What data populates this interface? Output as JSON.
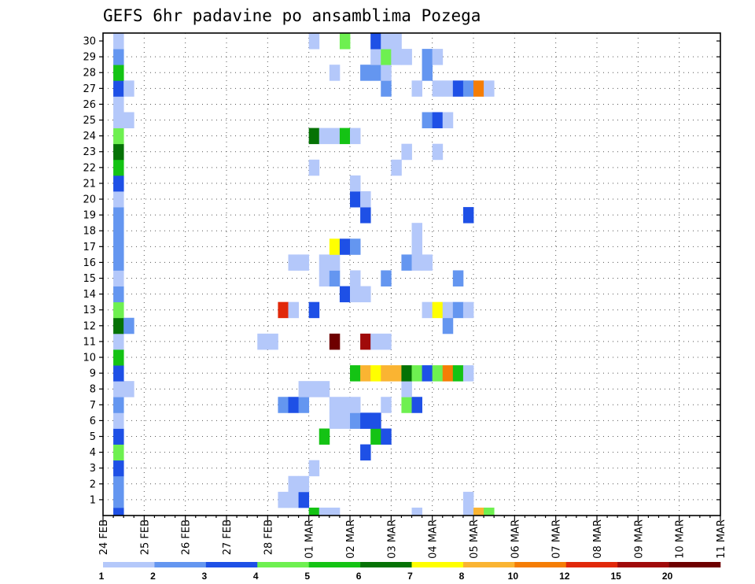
{
  "chart_data": {
    "type": "heatmap",
    "title": "GEFS 6hr padavine po ansamblima Pozega",
    "xlabel": "",
    "ylabel": "",
    "x_tick_labels": [
      "24 FEB",
      "25 FEB",
      "26 FEB",
      "27 FEB",
      "28 FEB",
      "01 MAR",
      "02 MAR",
      "03 MAR",
      "04 MAR",
      "05 MAR",
      "06 MAR",
      "07 MAR",
      "08 MAR",
      "09 MAR",
      "10 MAR",
      "11 MAR"
    ],
    "y_tick_labels": [
      "1",
      "2",
      "3",
      "4",
      "5",
      "6",
      "7",
      "8",
      "9",
      "10",
      "11",
      "12",
      "13",
      "14",
      "15",
      "16",
      "17",
      "18",
      "19",
      "20",
      "21",
      "22",
      "23",
      "24",
      "25",
      "26",
      "27",
      "28",
      "29",
      "30"
    ],
    "members_range": [
      0,
      30
    ],
    "time_steps_per_day": 4,
    "grid": true,
    "legend": {
      "placement": "bottom",
      "thresholds": [
        "1",
        "2",
        "3",
        "4",
        "5",
        "6",
        "7",
        "8",
        "10",
        "12",
        "15",
        "20"
      ],
      "colors": [
        "#b4c8fa",
        "#6496f0",
        "#1e50e6",
        "#6ef050",
        "#14c314",
        "#057205",
        "#ffff00",
        "#fab432",
        "#f57d05",
        "#e1280a",
        "#a00a0a",
        "#6e0000"
      ]
    },
    "cells": [
      {
        "m": 0,
        "t": 1,
        "c": 3
      },
      {
        "m": 0,
        "t": 20,
        "c": 5
      },
      {
        "m": 0,
        "t": 21,
        "c": 1
      },
      {
        "m": 0,
        "t": 22,
        "c": 1
      },
      {
        "m": 0,
        "t": 30,
        "c": 1
      },
      {
        "m": 0,
        "t": 35,
        "c": 1
      },
      {
        "m": 0,
        "t": 36,
        "c": 8
      },
      {
        "m": 0,
        "t": 37,
        "c": 4
      },
      {
        "m": 1,
        "t": 1,
        "c": 2
      },
      {
        "m": 1,
        "t": 17,
        "c": 1
      },
      {
        "m": 1,
        "t": 18,
        "c": 1
      },
      {
        "m": 1,
        "t": 19,
        "c": 3
      },
      {
        "m": 1,
        "t": 35,
        "c": 1
      },
      {
        "m": 2,
        "t": 1,
        "c": 2
      },
      {
        "m": 2,
        "t": 18,
        "c": 1
      },
      {
        "m": 2,
        "t": 19,
        "c": 1
      },
      {
        "m": 3,
        "t": 1,
        "c": 3
      },
      {
        "m": 3,
        "t": 20,
        "c": 1
      },
      {
        "m": 4,
        "t": 1,
        "c": 4
      },
      {
        "m": 4,
        "t": 25,
        "c": 3
      },
      {
        "m": 5,
        "t": 1,
        "c": 3
      },
      {
        "m": 5,
        "t": 21,
        "c": 5
      },
      {
        "m": 5,
        "t": 26,
        "c": 5
      },
      {
        "m": 5,
        "t": 27,
        "c": 3
      },
      {
        "m": 6,
        "t": 1,
        "c": 1
      },
      {
        "m": 6,
        "t": 22,
        "c": 1
      },
      {
        "m": 6,
        "t": 23,
        "c": 1
      },
      {
        "m": 6,
        "t": 24,
        "c": 2
      },
      {
        "m": 6,
        "t": 25,
        "c": 3
      },
      {
        "m": 6,
        "t": 26,
        "c": 3
      },
      {
        "m": 7,
        "t": 1,
        "c": 2
      },
      {
        "m": 7,
        "t": 17,
        "c": 2
      },
      {
        "m": 7,
        "t": 18,
        "c": 3
      },
      {
        "m": 7,
        "t": 19,
        "c": 2
      },
      {
        "m": 7,
        "t": 22,
        "c": 1
      },
      {
        "m": 7,
        "t": 23,
        "c": 1
      },
      {
        "m": 7,
        "t": 24,
        "c": 1
      },
      {
        "m": 7,
        "t": 27,
        "c": 1
      },
      {
        "m": 7,
        "t": 29,
        "c": 4
      },
      {
        "m": 7,
        "t": 30,
        "c": 3
      },
      {
        "m": 8,
        "t": 1,
        "c": 1
      },
      {
        "m": 8,
        "t": 2,
        "c": 1
      },
      {
        "m": 8,
        "t": 19,
        "c": 1
      },
      {
        "m": 8,
        "t": 20,
        "c": 1
      },
      {
        "m": 8,
        "t": 21,
        "c": 1
      },
      {
        "m": 8,
        "t": 29,
        "c": 1
      },
      {
        "m": 9,
        "t": 1,
        "c": 3
      },
      {
        "m": 9,
        "t": 24,
        "c": 5
      },
      {
        "m": 9,
        "t": 25,
        "c": 8
      },
      {
        "m": 9,
        "t": 26,
        "c": 7
      },
      {
        "m": 9,
        "t": 27,
        "c": 8
      },
      {
        "m": 9,
        "t": 28,
        "c": 8
      },
      {
        "m": 9,
        "t": 29,
        "c": 6
      },
      {
        "m": 9,
        "t": 30,
        "c": 4
      },
      {
        "m": 9,
        "t": 31,
        "c": 3
      },
      {
        "m": 9,
        "t": 32,
        "c": 4
      },
      {
        "m": 9,
        "t": 33,
        "c": 9
      },
      {
        "m": 9,
        "t": 34,
        "c": 5
      },
      {
        "m": 9,
        "t": 35,
        "c": 1
      },
      {
        "m": 10,
        "t": 1,
        "c": 5
      },
      {
        "m": 11,
        "t": 1,
        "c": 1
      },
      {
        "m": 11,
        "t": 15,
        "c": 1
      },
      {
        "m": 11,
        "t": 16,
        "c": 1
      },
      {
        "m": 11,
        "t": 22,
        "c": 12
      },
      {
        "m": 11,
        "t": 25,
        "c": 11
      },
      {
        "m": 11,
        "t": 26,
        "c": 1
      },
      {
        "m": 11,
        "t": 27,
        "c": 1
      },
      {
        "m": 12,
        "t": 1,
        "c": 6
      },
      {
        "m": 12,
        "t": 2,
        "c": 2
      },
      {
        "m": 12,
        "t": 33,
        "c": 2
      },
      {
        "m": 13,
        "t": 1,
        "c": 4
      },
      {
        "m": 13,
        "t": 17,
        "c": 10
      },
      {
        "m": 13,
        "t": 18,
        "c": 1
      },
      {
        "m": 13,
        "t": 20,
        "c": 3
      },
      {
        "m": 13,
        "t": 31,
        "c": 1
      },
      {
        "m": 13,
        "t": 32,
        "c": 7
      },
      {
        "m": 13,
        "t": 33,
        "c": 1
      },
      {
        "m": 13,
        "t": 34,
        "c": 2
      },
      {
        "m": 13,
        "t": 35,
        "c": 1
      },
      {
        "m": 14,
        "t": 1,
        "c": 2
      },
      {
        "m": 14,
        "t": 23,
        "c": 3
      },
      {
        "m": 14,
        "t": 24,
        "c": 1
      },
      {
        "m": 14,
        "t": 25,
        "c": 1
      },
      {
        "m": 15,
        "t": 1,
        "c": 1
      },
      {
        "m": 15,
        "t": 21,
        "c": 1
      },
      {
        "m": 15,
        "t": 22,
        "c": 2
      },
      {
        "m": 15,
        "t": 24,
        "c": 1
      },
      {
        "m": 15,
        "t": 27,
        "c": 2
      },
      {
        "m": 15,
        "t": 34,
        "c": 2
      },
      {
        "m": 16,
        "t": 1,
        "c": 2
      },
      {
        "m": 16,
        "t": 18,
        "c": 1
      },
      {
        "m": 16,
        "t": 19,
        "c": 1
      },
      {
        "m": 16,
        "t": 21,
        "c": 1
      },
      {
        "m": 16,
        "t": 22,
        "c": 1
      },
      {
        "m": 16,
        "t": 29,
        "c": 2
      },
      {
        "m": 16,
        "t": 30,
        "c": 1
      },
      {
        "m": 16,
        "t": 31,
        "c": 1
      },
      {
        "m": 17,
        "t": 1,
        "c": 2
      },
      {
        "m": 17,
        "t": 22,
        "c": 7
      },
      {
        "m": 17,
        "t": 23,
        "c": 3
      },
      {
        "m": 17,
        "t": 24,
        "c": 2
      },
      {
        "m": 17,
        "t": 30,
        "c": 1
      },
      {
        "m": 18,
        "t": 1,
        "c": 2
      },
      {
        "m": 18,
        "t": 30,
        "c": 1
      },
      {
        "m": 19,
        "t": 1,
        "c": 2
      },
      {
        "m": 19,
        "t": 25,
        "c": 3
      },
      {
        "m": 19,
        "t": 35,
        "c": 3
      },
      {
        "m": 20,
        "t": 1,
        "c": 1
      },
      {
        "m": 20,
        "t": 24,
        "c": 3
      },
      {
        "m": 20,
        "t": 25,
        "c": 1
      },
      {
        "m": 21,
        "t": 1,
        "c": 3
      },
      {
        "m": 21,
        "t": 24,
        "c": 1
      },
      {
        "m": 22,
        "t": 1,
        "c": 5
      },
      {
        "m": 22,
        "t": 20,
        "c": 1
      },
      {
        "m": 22,
        "t": 28,
        "c": 1
      },
      {
        "m": 23,
        "t": 1,
        "c": 6
      },
      {
        "m": 23,
        "t": 29,
        "c": 1
      },
      {
        "m": 23,
        "t": 32,
        "c": 1
      },
      {
        "m": 24,
        "t": 1,
        "c": 4
      },
      {
        "m": 24,
        "t": 20,
        "c": 6
      },
      {
        "m": 24,
        "t": 21,
        "c": 1
      },
      {
        "m": 24,
        "t": 22,
        "c": 1
      },
      {
        "m": 24,
        "t": 23,
        "c": 5
      },
      {
        "m": 24,
        "t": 24,
        "c": 1
      },
      {
        "m": 25,
        "t": 1,
        "c": 1
      },
      {
        "m": 25,
        "t": 2,
        "c": 1
      },
      {
        "m": 25,
        "t": 31,
        "c": 2
      },
      {
        "m": 25,
        "t": 32,
        "c": 3
      },
      {
        "m": 25,
        "t": 33,
        "c": 1
      },
      {
        "m": 26,
        "t": 1,
        "c": 1
      },
      {
        "m": 27,
        "t": 1,
        "c": 3
      },
      {
        "m": 27,
        "t": 2,
        "c": 1
      },
      {
        "m": 27,
        "t": 27,
        "c": 2
      },
      {
        "m": 27,
        "t": 30,
        "c": 1
      },
      {
        "m": 27,
        "t": 32,
        "c": 1
      },
      {
        "m": 27,
        "t": 33,
        "c": 1
      },
      {
        "m": 27,
        "t": 34,
        "c": 3
      },
      {
        "m": 27,
        "t": 35,
        "c": 2
      },
      {
        "m": 27,
        "t": 36,
        "c": 9
      },
      {
        "m": 27,
        "t": 37,
        "c": 1
      },
      {
        "m": 28,
        "t": 1,
        "c": 5
      },
      {
        "m": 28,
        "t": 22,
        "c": 1
      },
      {
        "m": 28,
        "t": 25,
        "c": 2
      },
      {
        "m": 28,
        "t": 26,
        "c": 2
      },
      {
        "m": 28,
        "t": 27,
        "c": 1
      },
      {
        "m": 28,
        "t": 31,
        "c": 2
      },
      {
        "m": 29,
        "t": 1,
        "c": 2
      },
      {
        "m": 29,
        "t": 26,
        "c": 1
      },
      {
        "m": 29,
        "t": 27,
        "c": 4
      },
      {
        "m": 29,
        "t": 28,
        "c": 1
      },
      {
        "m": 29,
        "t": 29,
        "c": 1
      },
      {
        "m": 29,
        "t": 31,
        "c": 2
      },
      {
        "m": 29,
        "t": 32,
        "c": 1
      },
      {
        "m": 30,
        "t": 1,
        "c": 1
      },
      {
        "m": 30,
        "t": 20,
        "c": 1
      },
      {
        "m": 30,
        "t": 23,
        "c": 4
      },
      {
        "m": 30,
        "t": 26,
        "c": 3
      },
      {
        "m": 30,
        "t": 27,
        "c": 1
      },
      {
        "m": 30,
        "t": 28,
        "c": 1
      }
    ]
  }
}
